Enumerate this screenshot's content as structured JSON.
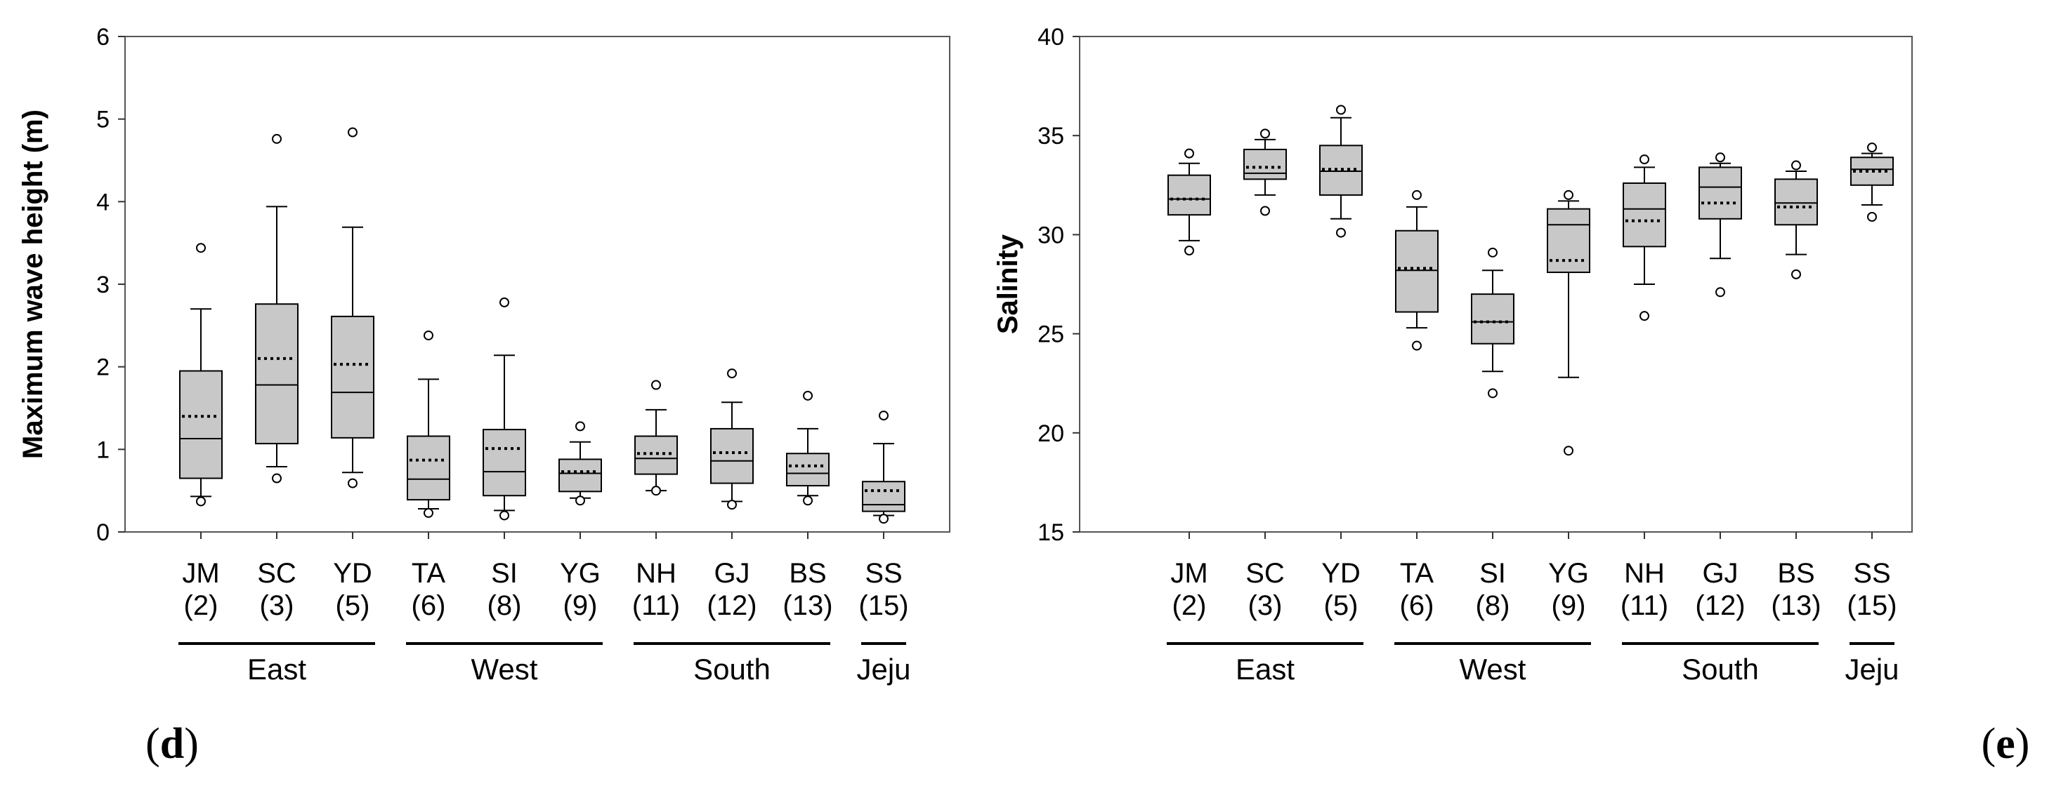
{
  "chart_data": [
    {
      "type": "box",
      "panel_label": "(d)",
      "panel_letter": "d",
      "ylabel": "Maximum wave height (m)",
      "ylim": [
        0,
        6
      ],
      "yticks": [
        0,
        1,
        2,
        3,
        4,
        5,
        6
      ],
      "grid": false,
      "categories": [
        "JM",
        "SC",
        "YD",
        "TA",
        "SI",
        "YG",
        "NH",
        "GJ",
        "BS",
        "SS"
      ],
      "category_numbers": [
        "(2)",
        "(3)",
        "(5)",
        "(6)",
        "(8)",
        "(9)",
        "(11)",
        "(12)",
        "(13)",
        "(15)"
      ],
      "groups": [
        {
          "name": "East",
          "members": [
            0,
            2
          ]
        },
        {
          "name": "West",
          "members": [
            3,
            5
          ]
        },
        {
          "name": "South",
          "members": [
            6,
            8
          ]
        },
        {
          "name": "Jeju",
          "members": [
            9,
            9
          ]
        }
      ],
      "boxes": [
        {
          "label": "JM",
          "q1": 0.65,
          "median": 1.13,
          "mean": 1.4,
          "q3": 1.95,
          "whisker_low": 0.43,
          "whisker_high": 2.7,
          "outliers": [
            0.37,
            3.44
          ]
        },
        {
          "label": "SC",
          "q1": 1.07,
          "median": 1.78,
          "mean": 2.1,
          "q3": 2.76,
          "whisker_low": 0.79,
          "whisker_high": 3.94,
          "outliers": [
            0.65,
            4.76
          ]
        },
        {
          "label": "YD",
          "q1": 1.14,
          "median": 1.69,
          "mean": 2.03,
          "q3": 2.61,
          "whisker_low": 0.72,
          "whisker_high": 3.69,
          "outliers": [
            0.59,
            4.84
          ]
        },
        {
          "label": "TA",
          "q1": 0.39,
          "median": 0.64,
          "mean": 0.87,
          "q3": 1.16,
          "whisker_low": 0.28,
          "whisker_high": 1.85,
          "outliers": [
            0.23,
            2.38
          ]
        },
        {
          "label": "SI",
          "q1": 0.44,
          "median": 0.73,
          "mean": 1.01,
          "q3": 1.24,
          "whisker_low": 0.26,
          "whisker_high": 2.14,
          "outliers": [
            0.2,
            2.78
          ]
        },
        {
          "label": "YG",
          "q1": 0.49,
          "median": 0.71,
          "mean": 0.73,
          "q3": 0.88,
          "whisker_low": 0.41,
          "whisker_high": 1.09,
          "outliers": [
            0.38,
            1.28
          ]
        },
        {
          "label": "NH",
          "q1": 0.7,
          "median": 0.89,
          "mean": 0.95,
          "q3": 1.16,
          "whisker_low": 0.5,
          "whisker_high": 1.48,
          "outliers": [
            0.5,
            1.78
          ]
        },
        {
          "label": "GJ",
          "q1": 0.59,
          "median": 0.86,
          "mean": 0.96,
          "q3": 1.25,
          "whisker_low": 0.37,
          "whisker_high": 1.57,
          "outliers": [
            0.33,
            1.92
          ]
        },
        {
          "label": "BS",
          "q1": 0.56,
          "median": 0.71,
          "mean": 0.8,
          "q3": 0.95,
          "whisker_low": 0.44,
          "whisker_high": 1.25,
          "outliers": [
            0.38,
            1.65
          ]
        },
        {
          "label": "SS",
          "q1": 0.25,
          "median": 0.33,
          "mean": 0.5,
          "q3": 0.61,
          "whisker_low": 0.2,
          "whisker_high": 1.07,
          "outliers": [
            0.16,
            1.41
          ]
        }
      ]
    },
    {
      "type": "box",
      "panel_label": "(e)",
      "panel_letter": "e",
      "ylabel": "Salinity",
      "ylim": [
        15,
        40
      ],
      "yticks": [
        15,
        20,
        25,
        30,
        35,
        40
      ],
      "grid": false,
      "categories": [
        "JM",
        "SC",
        "YD",
        "TA",
        "SI",
        "YG",
        "NH",
        "GJ",
        "BS",
        "SS"
      ],
      "category_numbers": [
        "(2)",
        "(3)",
        "(5)",
        "(6)",
        "(8)",
        "(9)",
        "(11)",
        "(12)",
        "(13)",
        "(15)"
      ],
      "groups": [
        {
          "name": "East",
          "members": [
            0,
            2
          ]
        },
        {
          "name": "West",
          "members": [
            3,
            5
          ]
        },
        {
          "name": "South",
          "members": [
            6,
            8
          ]
        },
        {
          "name": "Jeju",
          "members": [
            9,
            9
          ]
        }
      ],
      "boxes": [
        {
          "label": "JM",
          "q1": 31.0,
          "median": 31.8,
          "mean": 31.8,
          "q3": 33.0,
          "whisker_low": 29.7,
          "whisker_high": 33.6,
          "outliers": [
            29.2,
            34.1
          ]
        },
        {
          "label": "SC",
          "q1": 32.8,
          "median": 33.1,
          "mean": 33.4,
          "q3": 34.3,
          "whisker_low": 32.0,
          "whisker_high": 34.8,
          "outliers": [
            31.2,
            35.1
          ]
        },
        {
          "label": "YD",
          "q1": 32.0,
          "median": 33.2,
          "mean": 33.3,
          "q3": 34.5,
          "whisker_low": 30.8,
          "whisker_high": 35.9,
          "outliers": [
            30.1,
            36.3
          ]
        },
        {
          "label": "TA",
          "q1": 26.1,
          "median": 28.2,
          "mean": 28.3,
          "q3": 30.2,
          "whisker_low": 25.3,
          "whisker_high": 31.4,
          "outliers": [
            24.4,
            32.0
          ]
        },
        {
          "label": "SI",
          "q1": 24.5,
          "median": 25.6,
          "mean": 25.6,
          "q3": 27.0,
          "whisker_low": 23.1,
          "whisker_high": 28.2,
          "outliers": [
            22.0,
            29.1
          ]
        },
        {
          "label": "YG",
          "q1": 28.1,
          "median": 30.5,
          "mean": 28.7,
          "q3": 31.3,
          "whisker_low": 22.8,
          "whisker_high": 31.7,
          "outliers": [
            19.1,
            32.0
          ]
        },
        {
          "label": "NH",
          "q1": 29.4,
          "median": 31.3,
          "mean": 30.7,
          "q3": 32.6,
          "whisker_low": 27.5,
          "whisker_high": 33.4,
          "outliers": [
            25.9,
            33.8
          ]
        },
        {
          "label": "GJ",
          "q1": 30.8,
          "median": 32.4,
          "mean": 31.6,
          "q3": 33.4,
          "whisker_low": 28.8,
          "whisker_high": 33.6,
          "outliers": [
            27.1,
            33.9
          ]
        },
        {
          "label": "BS",
          "q1": 30.5,
          "median": 31.6,
          "mean": 31.4,
          "q3": 32.8,
          "whisker_low": 29.0,
          "whisker_high": 33.2,
          "outliers": [
            28.0,
            33.5
          ]
        },
        {
          "label": "SS",
          "q1": 32.5,
          "median": 33.3,
          "mean": 33.2,
          "q3": 33.9,
          "whisker_low": 31.5,
          "whisker_high": 34.1,
          "outliers": [
            30.9,
            34.4
          ]
        }
      ]
    }
  ]
}
